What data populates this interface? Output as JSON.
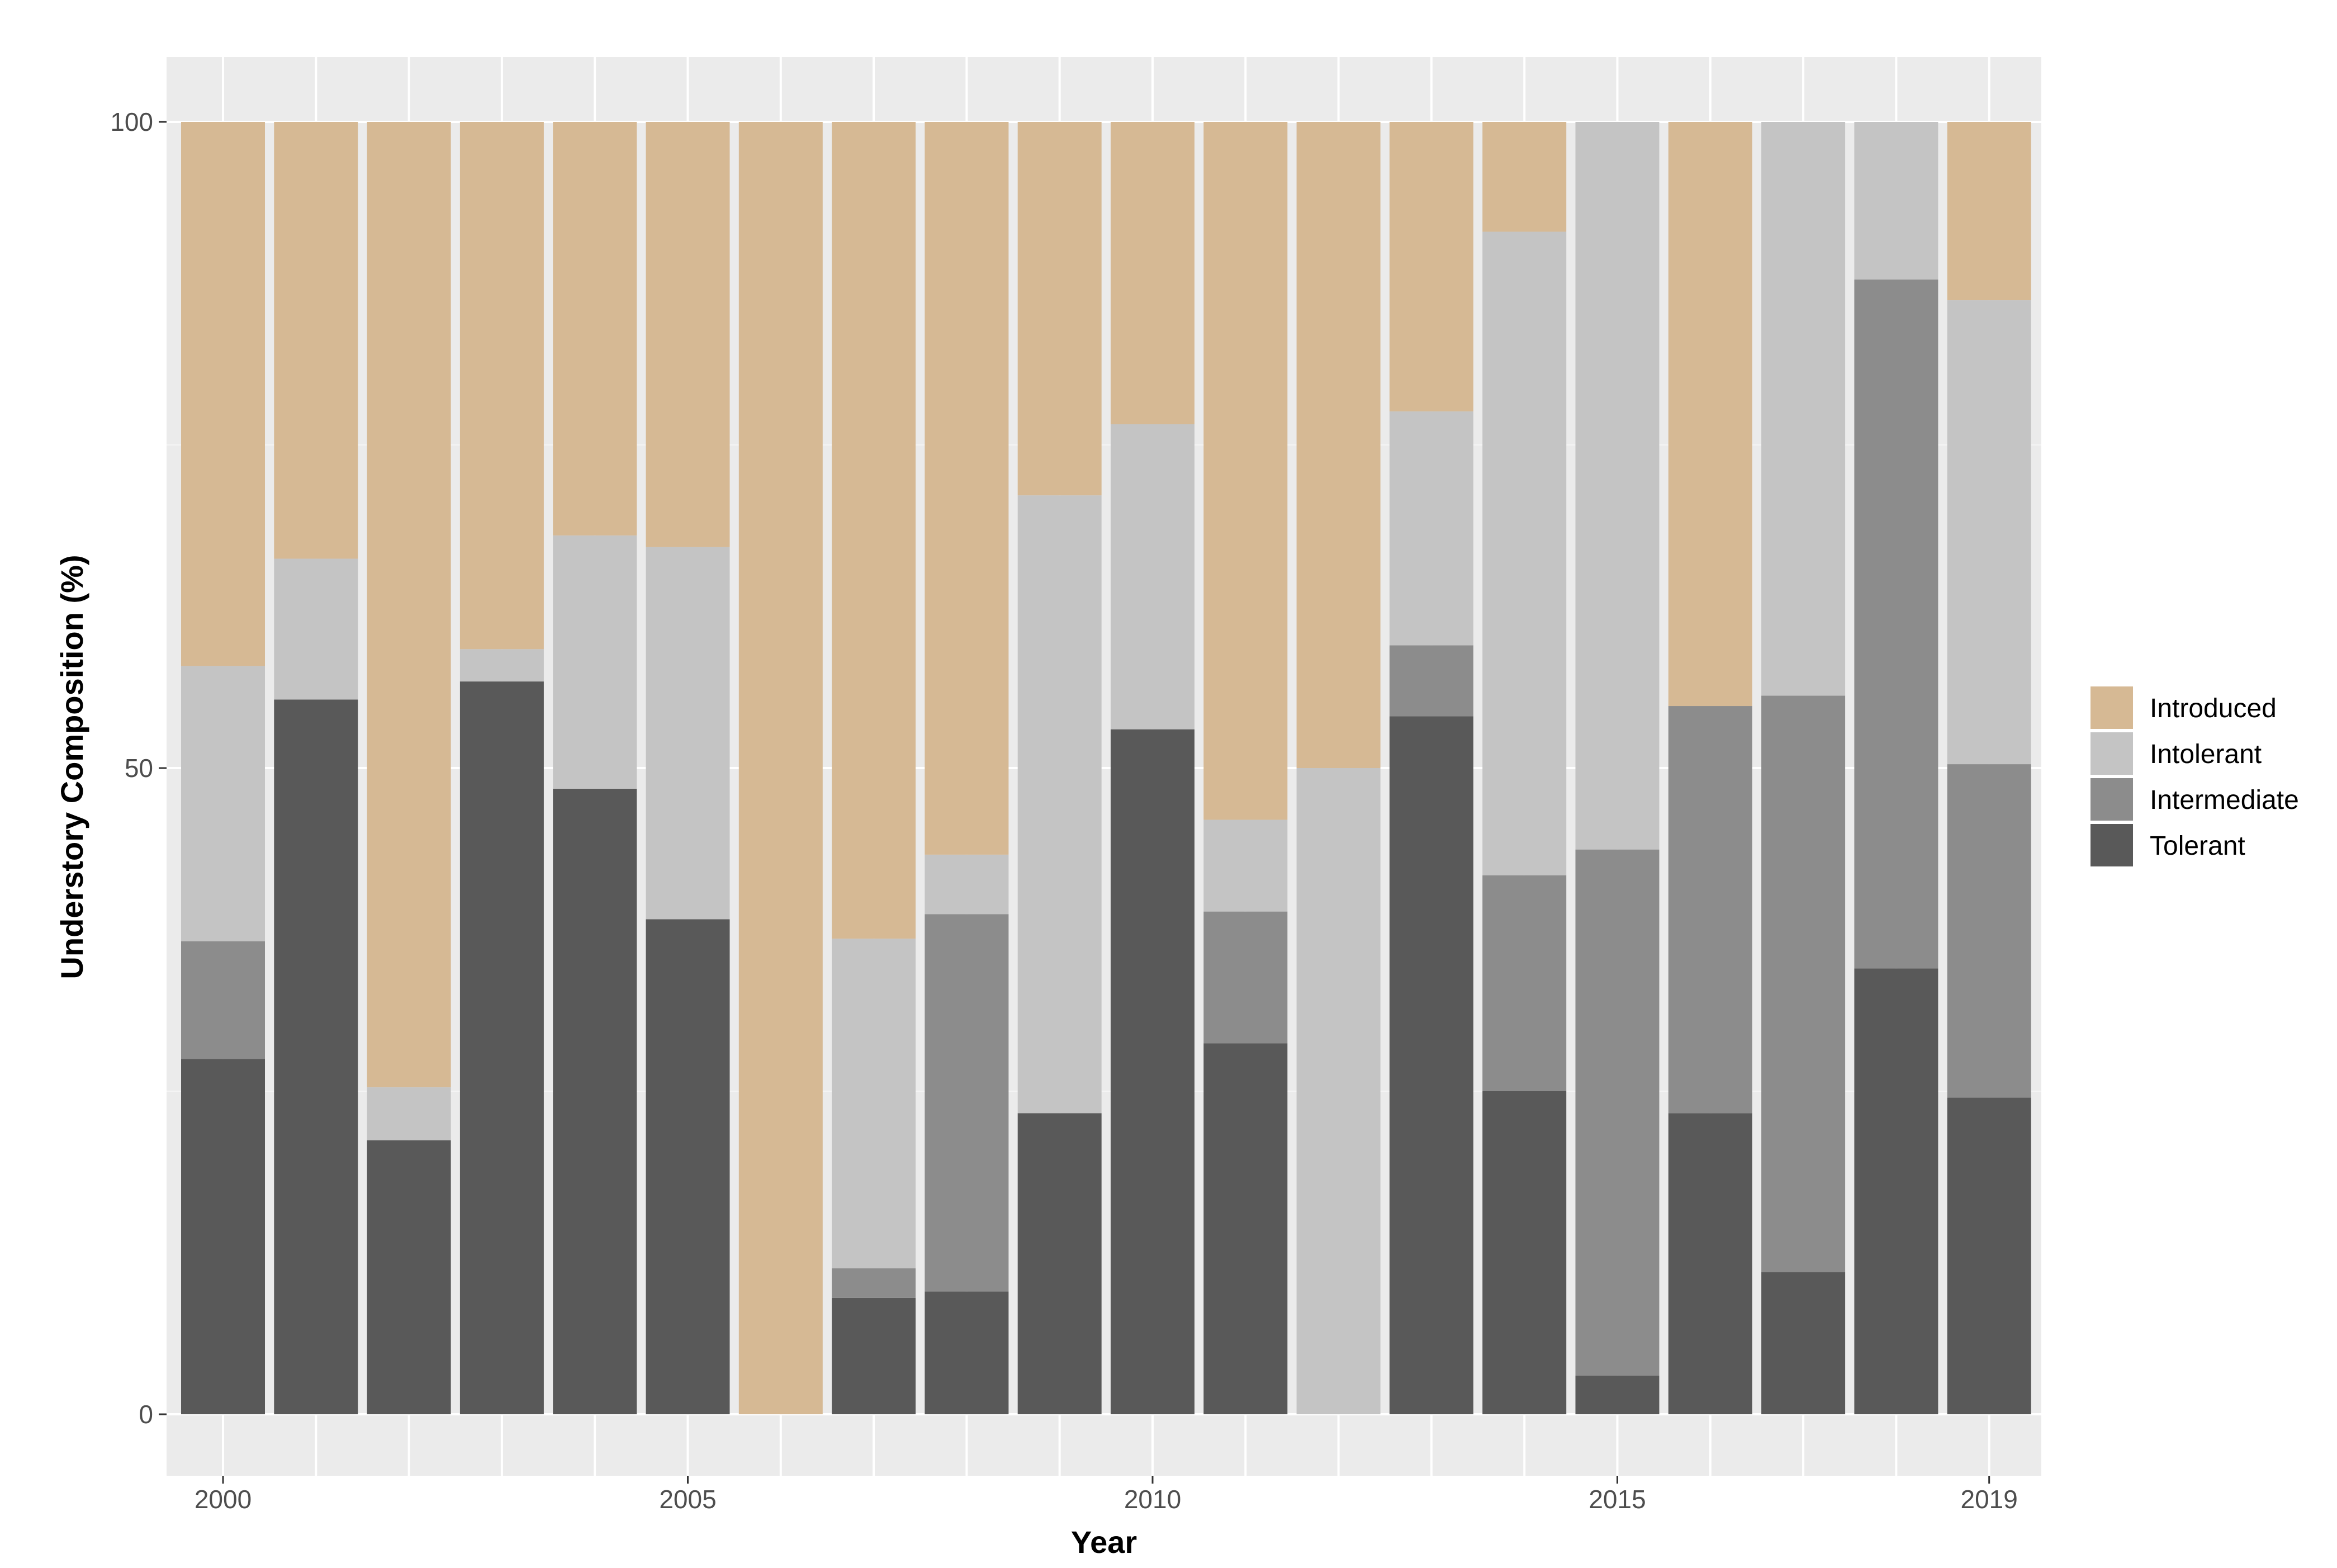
{
  "chart_data": {
    "type": "bar",
    "stacked": true,
    "title": "",
    "xlabel": "Year",
    "ylabel": "Understory Composition (%)",
    "ylim": [
      0,
      100
    ],
    "yticks": [
      "0",
      "50",
      "100"
    ],
    "xtick_years": [
      2000,
      2005,
      2010,
      2015,
      2019
    ],
    "xticks": [
      "2000",
      "2005",
      "2010",
      "2015",
      "2019"
    ],
    "grid": true,
    "legend_position": "right",
    "categories": [
      2000,
      2001,
      2002,
      2003,
      2004,
      2005,
      2006,
      2007,
      2008,
      2009,
      2010,
      2011,
      2012,
      2013,
      2014,
      2015,
      2016,
      2017,
      2018,
      2019
    ],
    "series": [
      {
        "name": "Tolerant",
        "color": "#595959",
        "values": [
          27.5,
          55.3,
          21.2,
          56.7,
          48.4,
          38.3,
          0,
          9.0,
          9.5,
          23.3,
          53.0,
          28.7,
          0,
          54.0,
          25.0,
          3.0,
          23.3,
          11.0,
          34.5,
          24.5
        ]
      },
      {
        "name": "Intermediate",
        "color": "#8c8c8c",
        "values": [
          9.1,
          0,
          0,
          0,
          0,
          0,
          0,
          2.3,
          29.2,
          0,
          0,
          10.2,
          0,
          5.5,
          16.7,
          40.7,
          31.5,
          44.6,
          53.3,
          25.8
        ]
      },
      {
        "name": "Intolerant",
        "color": "#c4c4c4",
        "values": [
          21.3,
          10.9,
          4.1,
          2.5,
          19.6,
          28.8,
          0,
          25.5,
          4.6,
          47.8,
          23.6,
          7.1,
          50.0,
          18.1,
          49.8,
          56.3,
          0,
          44.4,
          12.2,
          35.9
        ]
      },
      {
        "name": "Introduced",
        "color": "#d6b994",
        "values": [
          42.1,
          33.8,
          74.7,
          40.8,
          32.0,
          32.9,
          100,
          63.2,
          56.7,
          28.9,
          23.4,
          54.0,
          50.0,
          22.4,
          8.5,
          0,
          45.2,
          0,
          0,
          13.8
        ]
      }
    ],
    "legend_order": [
      "Introduced",
      "Intolerant",
      "Intermediate",
      "Tolerant"
    ]
  }
}
